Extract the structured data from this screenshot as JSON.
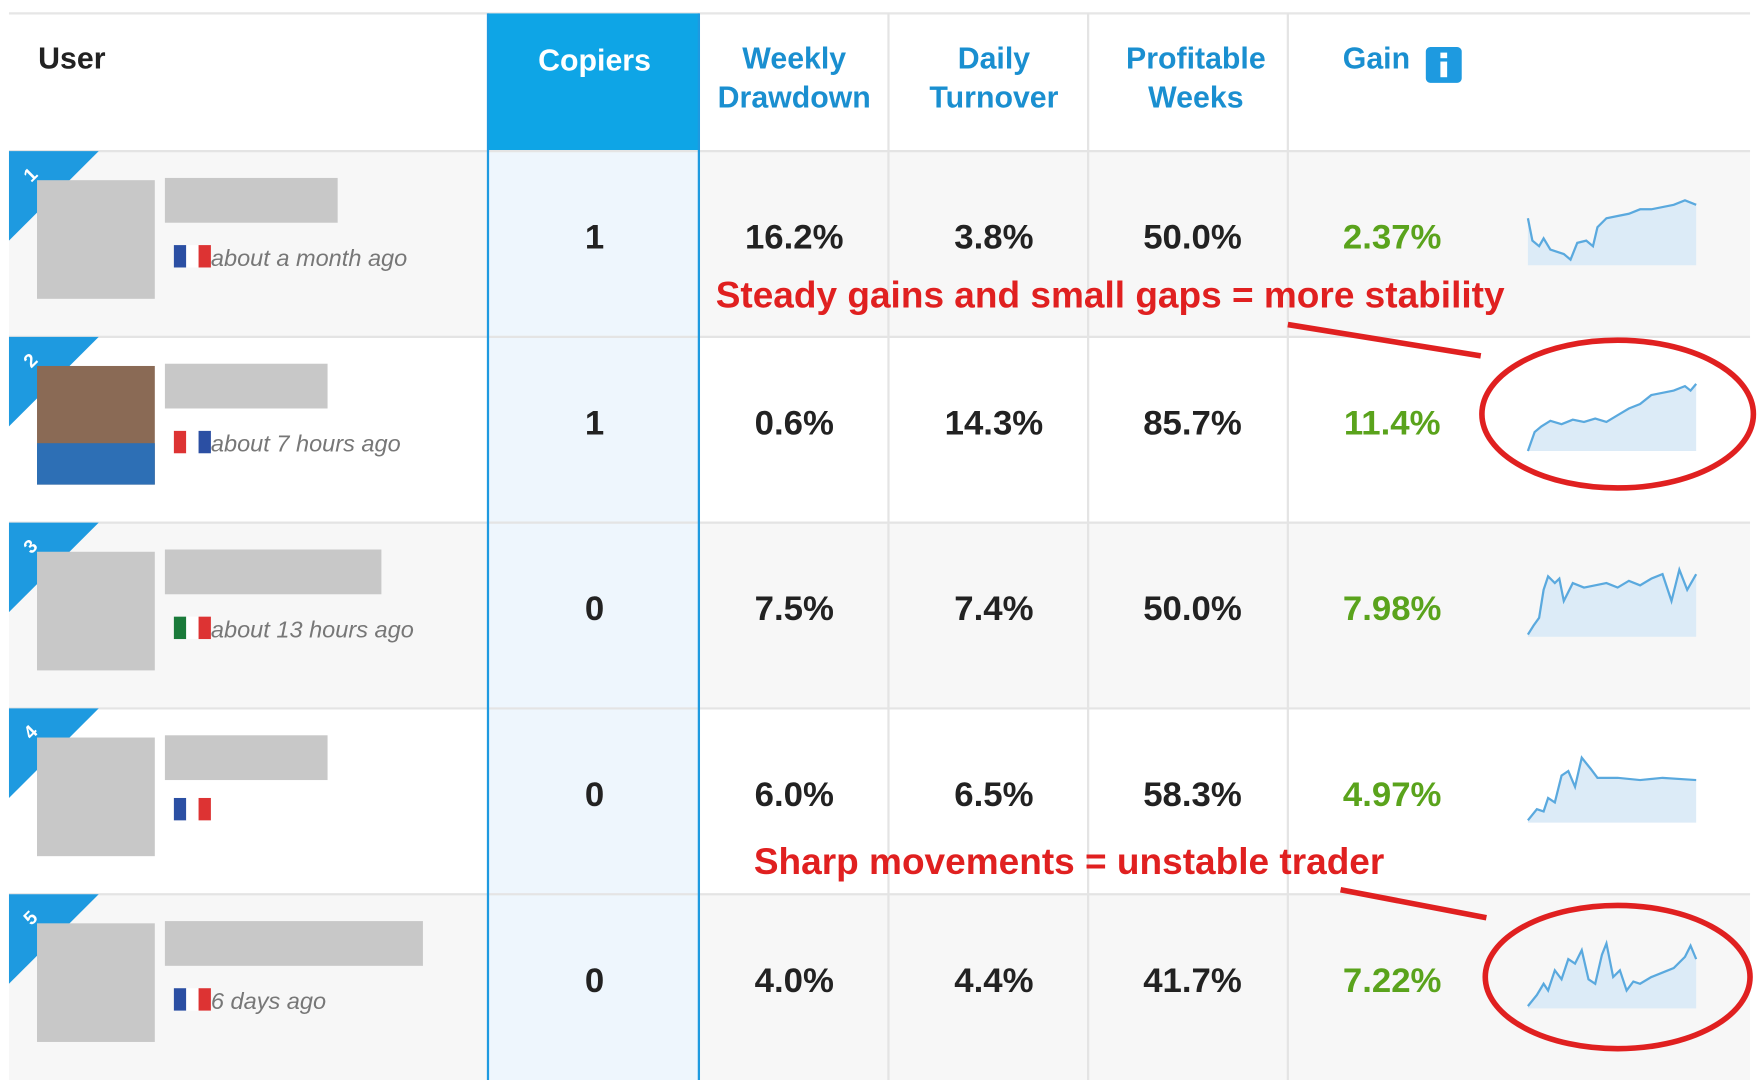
{
  "header": {
    "columns": [
      [
        "User"
      ],
      [
        "Copiers"
      ],
      [
        "Weekly",
        "Drawdown"
      ],
      [
        "Daily",
        "Turnover"
      ],
      [
        "Profitable",
        "Weeks"
      ],
      [
        "Gain"
      ]
    ]
  },
  "rows": [
    {
      "rank": "1",
      "last_active": "about a month ago",
      "copiers": "1",
      "weekly_drawdown": "16.2%",
      "daily_turnover": "3.8%",
      "profitable_weeks": "50.0%",
      "gain": "2.37%"
    },
    {
      "rank": "2",
      "last_active": "about 7 hours ago",
      "copiers": "1",
      "weekly_drawdown": "0.6%",
      "daily_turnover": "14.3%",
      "profitable_weeks": "85.7%",
      "gain": "11.4%"
    },
    {
      "rank": "3",
      "last_active": "about 13 hours ago",
      "copiers": "0",
      "weekly_drawdown": "7.5%",
      "daily_turnover": "7.4%",
      "profitable_weeks": "50.0%",
      "gain": "7.98%"
    },
    {
      "rank": "4",
      "copiers": "0",
      "weekly_drawdown": "6.0%",
      "daily_turnover": "6.5%",
      "profitable_weeks": "58.3%",
      "gain": "4.97%"
    },
    {
      "rank": "5",
      "last_active": "6 days ago",
      "copiers": "0",
      "weekly_drawdown": "4.0%",
      "daily_turnover": "4.4%",
      "profitable_weeks": "41.7%",
      "gain": "7.22%"
    }
  ],
  "annotations": [
    "Steady gains and small gaps = more stability",
    "Sharp movements = unstable trader"
  ]
}
